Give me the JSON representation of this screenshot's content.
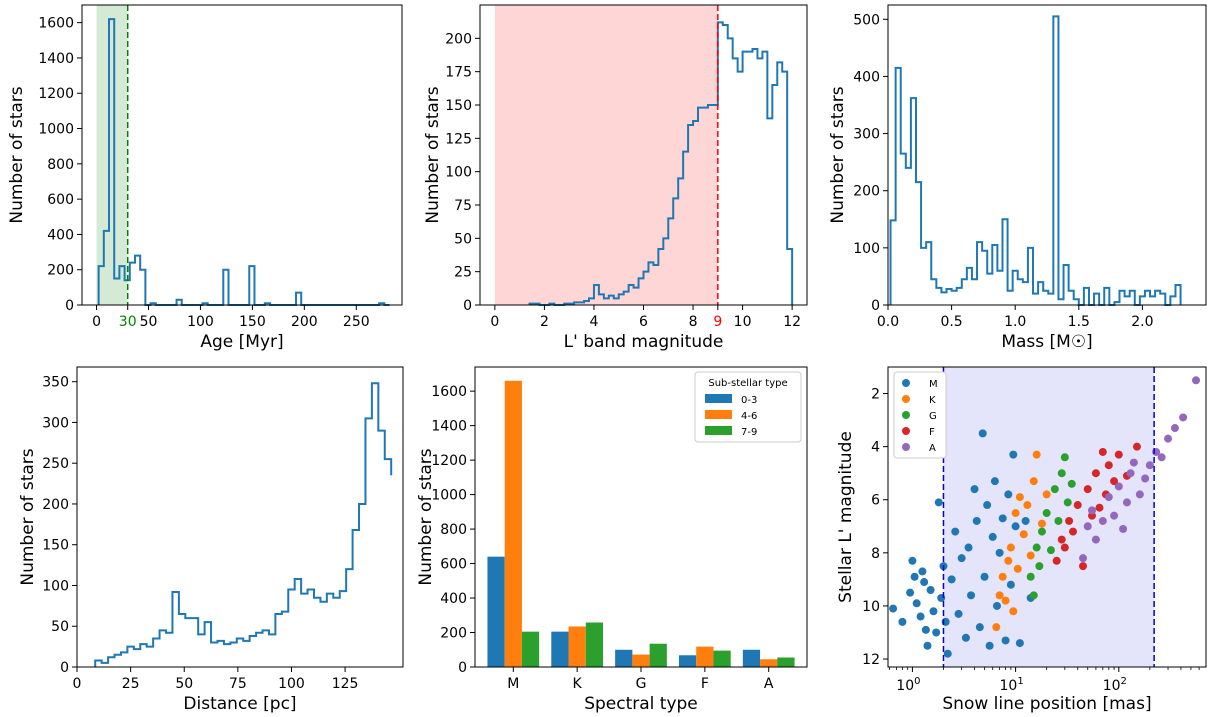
{
  "colors": {
    "hist": "#1f77b4",
    "blue": "#1f77b4",
    "orange": "#ff7f0e",
    "green": "#2ca02c",
    "red": "#d62728",
    "purple": "#9467bd",
    "green_shade": "#d5ead4",
    "red_shade": "#ffd6d6",
    "blue_shade": "#e4e4fb",
    "green_line": "#008000",
    "red_line": "#ff0000",
    "blue_line": "#0000dd"
  },
  "chart_data": [
    {
      "id": "age",
      "type": "histogram",
      "xlabel": "Age [Myr]",
      "ylabel": "Number of stars",
      "xlim": [
        -14,
        294
      ],
      "ylim": [
        0,
        1700
      ],
      "xticks": [
        {
          "v": 0,
          "t": "0"
        },
        {
          "v": 50,
          "t": "50"
        },
        {
          "v": 100,
          "t": "100"
        },
        {
          "v": 150,
          "t": "150"
        },
        {
          "v": 200,
          "t": "200"
        },
        {
          "v": 250,
          "t": "250"
        }
      ],
      "yticks": [
        0,
        200,
        400,
        600,
        800,
        1000,
        1200,
        1400,
        1600
      ],
      "special_ticks": [
        {
          "v": 30,
          "t": "30",
          "color": "#008000"
        }
      ],
      "edges": [
        2,
        7,
        12,
        17,
        22,
        27,
        32,
        37,
        42,
        47,
        52,
        57,
        62,
        67,
        72,
        77,
        82,
        87,
        92,
        97,
        102,
        107,
        112,
        117,
        122,
        127,
        132,
        137,
        142,
        147,
        152,
        157,
        162,
        167,
        172,
        177,
        182,
        187,
        192,
        197,
        202,
        207,
        212,
        217,
        222,
        227,
        232,
        237,
        242,
        247,
        252,
        257,
        262,
        267,
        272,
        277,
        282
      ],
      "values": [
        220,
        420,
        1620,
        150,
        220,
        140,
        240,
        280,
        200,
        0,
        10,
        0,
        0,
        0,
        0,
        30,
        0,
        0,
        0,
        0,
        10,
        0,
        0,
        0,
        200,
        0,
        0,
        0,
        0,
        220,
        0,
        0,
        10,
        0,
        0,
        0,
        0,
        0,
        70,
        0,
        0,
        0,
        0,
        0,
        0,
        0,
        0,
        0,
        0,
        0,
        0,
        0,
        0,
        0,
        10,
        0
      ],
      "shade": {
        "x0": 0,
        "x1": 30,
        "color": "#d5ead4"
      },
      "vline": {
        "x": 30,
        "color": "#008000"
      }
    },
    {
      "id": "lband",
      "type": "histogram",
      "xlabel": "L' band magnitude",
      "ylabel": "Number of stars",
      "xlim": [
        -0.6,
        12.6
      ],
      "ylim": [
        0,
        225
      ],
      "xticks": [
        {
          "v": 0,
          "t": "0"
        },
        {
          "v": 2,
          "t": "2"
        },
        {
          "v": 4,
          "t": "4"
        },
        {
          "v": 6,
          "t": "6"
        },
        {
          "v": 8,
          "t": "8"
        },
        {
          "v": 10,
          "t": "10"
        },
        {
          "v": 12,
          "t": "12"
        }
      ],
      "yticks": [
        0,
        25,
        50,
        75,
        100,
        125,
        150,
        175,
        200
      ],
      "special_ticks": [
        {
          "v": 9,
          "t": "9",
          "color": "#ff0000"
        }
      ],
      "edges": [
        1.4,
        1.6,
        1.8,
        2.0,
        2.2,
        2.4,
        2.6,
        2.8,
        3.0,
        3.2,
        3.4,
        3.6,
        3.8,
        4.0,
        4.2,
        4.4,
        4.6,
        4.8,
        5.0,
        5.2,
        5.4,
        5.6,
        5.8,
        6.0,
        6.2,
        6.4,
        6.6,
        6.8,
        7.0,
        7.2,
        7.4,
        7.6,
        7.8,
        8.0,
        8.2,
        8.4,
        8.6,
        8.8,
        9.0,
        9.2,
        9.4,
        9.6,
        9.8,
        10.0,
        10.2,
        10.4,
        10.6,
        10.8,
        11.0,
        11.2,
        11.4,
        11.6,
        11.8,
        12.0
      ],
      "values": [
        1,
        1,
        0,
        0,
        1,
        0,
        0,
        1,
        1,
        2,
        2,
        3,
        5,
        15,
        8,
        5,
        7,
        5,
        8,
        10,
        15,
        13,
        20,
        25,
        32,
        30,
        42,
        50,
        65,
        80,
        95,
        115,
        135,
        138,
        148,
        148,
        150,
        150,
        212,
        210,
        200,
        185,
        175,
        190,
        190,
        192,
        185,
        190,
        140,
        165,
        182,
        175,
        42
      ],
      "shade": {
        "x0": 0,
        "x1": 9,
        "color": "#ffd6d6"
      },
      "vline": {
        "x": 9,
        "color": "#ff0000"
      }
    },
    {
      "id": "mass",
      "type": "histogram",
      "xlabel": "Mass [M☉]",
      "ylabel": "Number of stars",
      "xlim": [
        0,
        2.5
      ],
      "ylim": [
        0,
        525
      ],
      "xticks": [
        {
          "v": 0,
          "t": "0.0"
        },
        {
          "v": 0.5,
          "t": "0.5"
        },
        {
          "v": 1,
          "t": "1.0"
        },
        {
          "v": 1.5,
          "t": "1.5"
        },
        {
          "v": 2,
          "t": "2.0"
        }
      ],
      "yticks": [
        0,
        100,
        200,
        300,
        400,
        500
      ],
      "edges": [
        0.02,
        0.06,
        0.1,
        0.14,
        0.18,
        0.22,
        0.26,
        0.3,
        0.34,
        0.38,
        0.42,
        0.46,
        0.5,
        0.54,
        0.58,
        0.62,
        0.66,
        0.7,
        0.74,
        0.78,
        0.82,
        0.86,
        0.9,
        0.94,
        0.98,
        1.02,
        1.06,
        1.1,
        1.14,
        1.18,
        1.22,
        1.26,
        1.3,
        1.34,
        1.38,
        1.42,
        1.46,
        1.5,
        1.54,
        1.58,
        1.62,
        1.66,
        1.7,
        1.74,
        1.78,
        1.82,
        1.86,
        1.9,
        1.94,
        1.98,
        2.02,
        2.06,
        2.1,
        2.14,
        2.18,
        2.22,
        2.26,
        2.3
      ],
      "values": [
        148,
        415,
        265,
        240,
        362,
        215,
        100,
        110,
        45,
        30,
        22,
        28,
        25,
        30,
        45,
        65,
        45,
        110,
        95,
        55,
        105,
        60,
        150,
        25,
        60,
        45,
        40,
        100,
        20,
        40,
        25,
        20,
        505,
        10,
        70,
        25,
        10,
        0,
        30,
        0,
        20,
        0,
        30,
        0,
        5,
        25,
        15,
        25,
        0,
        15,
        25,
        15,
        25,
        20,
        0,
        15,
        35
      ],
      "shade": null,
      "vline": null
    },
    {
      "id": "distance",
      "type": "histogram",
      "xlabel": "Distance [pc]",
      "ylabel": "Number of stars",
      "xlim": [
        0,
        152
      ],
      "ylim": [
        0,
        368
      ],
      "xticks": [
        {
          "v": 0,
          "t": "0"
        },
        {
          "v": 25,
          "t": "25"
        },
        {
          "v": 50,
          "t": "50"
        },
        {
          "v": 75,
          "t": "75"
        },
        {
          "v": 100,
          "t": "100"
        },
        {
          "v": 125,
          "t": "125"
        }
      ],
      "yticks": [
        0,
        50,
        100,
        150,
        200,
        250,
        300,
        350
      ],
      "edges": [
        8.5,
        11.5,
        14.5,
        17.5,
        20.5,
        23.5,
        26.5,
        29.5,
        32.5,
        35.5,
        38.5,
        41.5,
        44.5,
        47.5,
        50.5,
        53.5,
        56.5,
        59.5,
        62.5,
        65.5,
        68.5,
        71.5,
        74.5,
        77.5,
        80.5,
        83.5,
        86.5,
        89.5,
        92.5,
        95.5,
        98.5,
        101.5,
        104.5,
        107.5,
        110.5,
        113.5,
        116.5,
        119.5,
        122.5,
        125.5,
        128.5,
        131.5,
        134.5,
        137.5,
        140.5,
        143.5,
        146.5
      ],
      "values": [
        8,
        5,
        12,
        15,
        18,
        25,
        22,
        28,
        25,
        35,
        45,
        42,
        92,
        65,
        60,
        60,
        40,
        55,
        30,
        32,
        28,
        30,
        35,
        32,
        38,
        42,
        45,
        40,
        65,
        68,
        95,
        108,
        90,
        95,
        85,
        80,
        90,
        85,
        93,
        120,
        168,
        200,
        305,
        348,
        290,
        255,
        235
      ],
      "shade": null,
      "vline": null
    },
    {
      "id": "spectral",
      "type": "bar",
      "xlabel": "Spectral type",
      "ylabel": "Number of stars",
      "ylim": [
        0,
        1740
      ],
      "yticks": [
        0,
        200,
        400,
        600,
        800,
        1000,
        1200,
        1400,
        1600
      ],
      "categories": [
        "M",
        "K",
        "G",
        "F",
        "A"
      ],
      "legend_title": "Sub-stellar type",
      "legend_position": "upper-right",
      "series": [
        {
          "name": "0-3",
          "color": "#1f77b4",
          "values": [
            640,
            205,
            100,
            68,
            100
          ]
        },
        {
          "name": "4-6",
          "color": "#ff7f0e",
          "values": [
            1660,
            235,
            72,
            118,
            45
          ]
        },
        {
          "name": "7-9",
          "color": "#2ca02c",
          "values": [
            205,
            258,
            135,
            95,
            55
          ]
        }
      ]
    },
    {
      "id": "snow",
      "type": "scatter",
      "xlabel": "Snow line position [mas]",
      "ylabel": "Stellar L' magnitude",
      "xscale": "log",
      "xlim": [
        0.58,
        700
      ],
      "ylim": [
        12.3,
        1.0
      ],
      "yinverted": true,
      "yticks": [
        2,
        4,
        6,
        8,
        10,
        12
      ],
      "xticks": [
        {
          "v": 1,
          "base": "10",
          "exp": "0"
        },
        {
          "v": 10,
          "base": "10",
          "exp": "1"
        },
        {
          "v": 100,
          "base": "10",
          "exp": "2"
        }
      ],
      "shade": {
        "x0": 2,
        "x1": 220,
        "color": "#e4e4fb"
      },
      "vlines": [
        {
          "x": 2,
          "color": "#0000dd"
        },
        {
          "x": 220,
          "color": "#0000dd"
        }
      ],
      "legend_position": "upper-left",
      "groups": [
        {
          "name": "M",
          "color": "#1f77b4",
          "points": [
            [
              0.65,
              10.1
            ],
            [
              0.8,
              10.6
            ],
            [
              0.95,
              9.5
            ],
            [
              1.0,
              8.3
            ],
            [
              1.05,
              8.9
            ],
            [
              1.1,
              9.9
            ],
            [
              1.2,
              10.4
            ],
            [
              1.25,
              8.7
            ],
            [
              1.3,
              9.1
            ],
            [
              1.35,
              10.9
            ],
            [
              1.4,
              11.5
            ],
            [
              1.5,
              9.4
            ],
            [
              1.6,
              10.2
            ],
            [
              1.7,
              11.0
            ],
            [
              1.8,
              6.1
            ],
            [
              1.9,
              9.7
            ],
            [
              2.0,
              8.5
            ],
            [
              2.1,
              10.6
            ],
            [
              2.2,
              11.8
            ],
            [
              2.4,
              9.0
            ],
            [
              2.6,
              7.2
            ],
            [
              2.8,
              10.3
            ],
            [
              3.0,
              8.2
            ],
            [
              3.3,
              11.2
            ],
            [
              3.5,
              7.8
            ],
            [
              3.7,
              9.6
            ],
            [
              4.0,
              5.6
            ],
            [
              4.2,
              6.8
            ],
            [
              4.5,
              10.8
            ],
            [
              4.8,
              3.5
            ],
            [
              5.0,
              8.9
            ],
            [
              5.3,
              6.2
            ],
            [
              5.6,
              11.5
            ],
            [
              6.0,
              7.4
            ],
            [
              6.3,
              5.3
            ],
            [
              6.6,
              10.0
            ],
            [
              7.0,
              8.0
            ],
            [
              7.5,
              6.7
            ],
            [
              8.0,
              11.3
            ],
            [
              8.5,
              5.8
            ],
            [
              9.0,
              9.2
            ],
            [
              9.5,
              4.3
            ],
            [
              10.0,
              7.0
            ],
            [
              11.0,
              11.4
            ],
            [
              12.5,
              6.8
            ],
            [
              14.0,
              9.7
            ]
          ]
        },
        {
          "name": "K",
          "color": "#ff7f0e",
          "points": [
            [
              6.5,
              10.8
            ],
            [
              7.0,
              9.6
            ],
            [
              7.5,
              8.9
            ],
            [
              8.0,
              9.8
            ],
            [
              8.5,
              8.3
            ],
            [
              9.0,
              7.8
            ],
            [
              9.5,
              10.2
            ],
            [
              10.0,
              6.5
            ],
            [
              10.5,
              8.6
            ],
            [
              11.0,
              5.9
            ],
            [
              12.0,
              7.3
            ],
            [
              13.0,
              6.2
            ],
            [
              14.0,
              8.1
            ],
            [
              15.0,
              5.3
            ],
            [
              16.0,
              4.3
            ],
            [
              18.0,
              6.9
            ],
            [
              20.0,
              5.8
            ]
          ]
        },
        {
          "name": "G",
          "color": "#2ca02c",
          "points": [
            [
              14.0,
              8.9
            ],
            [
              15.0,
              9.6
            ],
            [
              16.0,
              7.8
            ],
            [
              17.0,
              8.5
            ],
            [
              18.0,
              7.2
            ],
            [
              20.0,
              6.5
            ],
            [
              22.0,
              7.9
            ],
            [
              24.0,
              5.6
            ],
            [
              26.0,
              6.8
            ],
            [
              28.0,
              5.0
            ],
            [
              30.0,
              4.4
            ],
            [
              32.0,
              6.1
            ],
            [
              35.0,
              5.4
            ]
          ]
        },
        {
          "name": "F",
          "color": "#d62728",
          "points": [
            [
              25.0,
              8.3
            ],
            [
              28.0,
              7.5
            ],
            [
              30.0,
              7.8
            ],
            [
              33.0,
              6.8
            ],
            [
              36.0,
              7.2
            ],
            [
              40.0,
              6.2
            ],
            [
              45.0,
              8.5
            ],
            [
              50.0,
              5.6
            ],
            [
              55.0,
              6.6
            ],
            [
              60.0,
              5.0
            ],
            [
              65.0,
              6.3
            ],
            [
              70.0,
              4.2
            ],
            [
              75.0,
              5.8
            ],
            [
              80.0,
              4.7
            ],
            [
              90.0,
              5.3
            ],
            [
              100.0,
              4.3
            ],
            [
              120.0,
              5.1
            ],
            [
              150.0,
              4.0
            ]
          ]
        },
        {
          "name": "A",
          "color": "#9467bd",
          "points": [
            [
              45.0,
              8.2
            ],
            [
              50.0,
              7.0
            ],
            [
              55.0,
              6.4
            ],
            [
              60.0,
              7.5
            ],
            [
              70.0,
              6.8
            ],
            [
              80.0,
              5.9
            ],
            [
              90.0,
              6.6
            ],
            [
              100.0,
              5.5
            ],
            [
              110.0,
              7.1
            ],
            [
              120.0,
              6.1
            ],
            [
              130.0,
              5.0
            ],
            [
              140.0,
              4.6
            ],
            [
              160.0,
              5.8
            ],
            [
              180.0,
              5.2
            ],
            [
              200.0,
              4.7
            ],
            [
              230.0,
              4.2
            ],
            [
              260.0,
              4.4
            ],
            [
              300.0,
              3.7
            ],
            [
              350.0,
              3.3
            ],
            [
              420.0,
              2.9
            ],
            [
              560.0,
              1.5
            ]
          ]
        }
      ]
    }
  ]
}
